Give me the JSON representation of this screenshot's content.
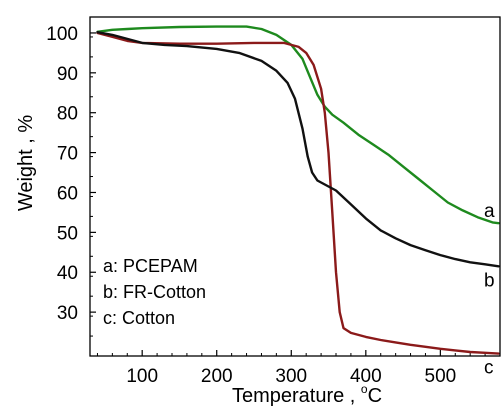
{
  "chart_data": {
    "type": "line",
    "xlabel": "Temperature , °C",
    "xlabel_main": "Temperature , ",
    "xlabel_unit_sup": "o",
    "xlabel_unit": "C",
    "ylabel": "Weight , %",
    "xlim": [
      30,
      580
    ],
    "ylim": [
      19,
      104
    ],
    "xticks": [
      100,
      200,
      300,
      400,
      500
    ],
    "yticks": [
      30,
      40,
      50,
      60,
      70,
      80,
      90,
      100
    ],
    "grid": false,
    "legend_position": "bottom-left",
    "legend": [
      "a: PCEPAM",
      "b: FR-Cotton",
      "c: Cotton"
    ],
    "series": [
      {
        "id": "a",
        "label": "a",
        "color": "#1e8a1e",
        "points": [
          [
            40,
            100.3
          ],
          [
            60,
            100.8
          ],
          [
            80,
            101.0
          ],
          [
            100,
            101.2
          ],
          [
            150,
            101.5
          ],
          [
            200,
            101.6
          ],
          [
            240,
            101.6
          ],
          [
            260,
            101.0
          ],
          [
            280,
            99.5
          ],
          [
            300,
            97.0
          ],
          [
            315,
            93.5
          ],
          [
            325,
            89.0
          ],
          [
            335,
            84.5
          ],
          [
            345,
            81.5
          ],
          [
            355,
            79.5
          ],
          [
            370,
            77.5
          ],
          [
            390,
            74.5
          ],
          [
            410,
            72.0
          ],
          [
            430,
            69.5
          ],
          [
            450,
            66.5
          ],
          [
            470,
            63.5
          ],
          [
            490,
            60.5
          ],
          [
            510,
            57.5
          ],
          [
            530,
            55.5
          ],
          [
            550,
            53.8
          ],
          [
            570,
            52.5
          ],
          [
            578,
            52.3
          ]
        ]
      },
      {
        "id": "b",
        "label": "b",
        "color": "#111111",
        "points": [
          [
            40,
            100.2
          ],
          [
            60,
            99.5
          ],
          [
            80,
            98.5
          ],
          [
            100,
            97.5
          ],
          [
            130,
            97.0
          ],
          [
            160,
            96.7
          ],
          [
            200,
            96.0
          ],
          [
            230,
            95.0
          ],
          [
            260,
            93.0
          ],
          [
            280,
            90.5
          ],
          [
            295,
            87.5
          ],
          [
            305,
            83.5
          ],
          [
            315,
            76.0
          ],
          [
            322,
            69.0
          ],
          [
            328,
            65.0
          ],
          [
            335,
            63.0
          ],
          [
            345,
            62.0
          ],
          [
            360,
            60.5
          ],
          [
            380,
            57.0
          ],
          [
            400,
            53.5
          ],
          [
            420,
            50.5
          ],
          [
            440,
            48.5
          ],
          [
            460,
            46.8
          ],
          [
            480,
            45.5
          ],
          [
            500,
            44.3
          ],
          [
            520,
            43.3
          ],
          [
            540,
            42.5
          ],
          [
            560,
            42.0
          ],
          [
            578,
            41.5
          ]
        ]
      },
      {
        "id": "c",
        "label": "c",
        "color": "#8b1a1a",
        "points": [
          [
            40,
            100.0
          ],
          [
            60,
            99.0
          ],
          [
            80,
            98.0
          ],
          [
            100,
            97.5
          ],
          [
            150,
            97.3
          ],
          [
            200,
            97.3
          ],
          [
            250,
            97.5
          ],
          [
            290,
            97.5
          ],
          [
            310,
            96.5
          ],
          [
            320,
            95.0
          ],
          [
            330,
            92.0
          ],
          [
            340,
            86.0
          ],
          [
            345,
            80.0
          ],
          [
            350,
            70.0
          ],
          [
            355,
            55.0
          ],
          [
            360,
            40.0
          ],
          [
            365,
            30.0
          ],
          [
            370,
            26.0
          ],
          [
            380,
            24.8
          ],
          [
            400,
            23.8
          ],
          [
            420,
            23.0
          ],
          [
            440,
            22.4
          ],
          [
            460,
            21.8
          ],
          [
            480,
            21.3
          ],
          [
            500,
            20.8
          ],
          [
            520,
            20.4
          ],
          [
            540,
            20.0
          ],
          [
            560,
            19.8
          ],
          [
            578,
            19.6
          ]
        ]
      }
    ]
  }
}
